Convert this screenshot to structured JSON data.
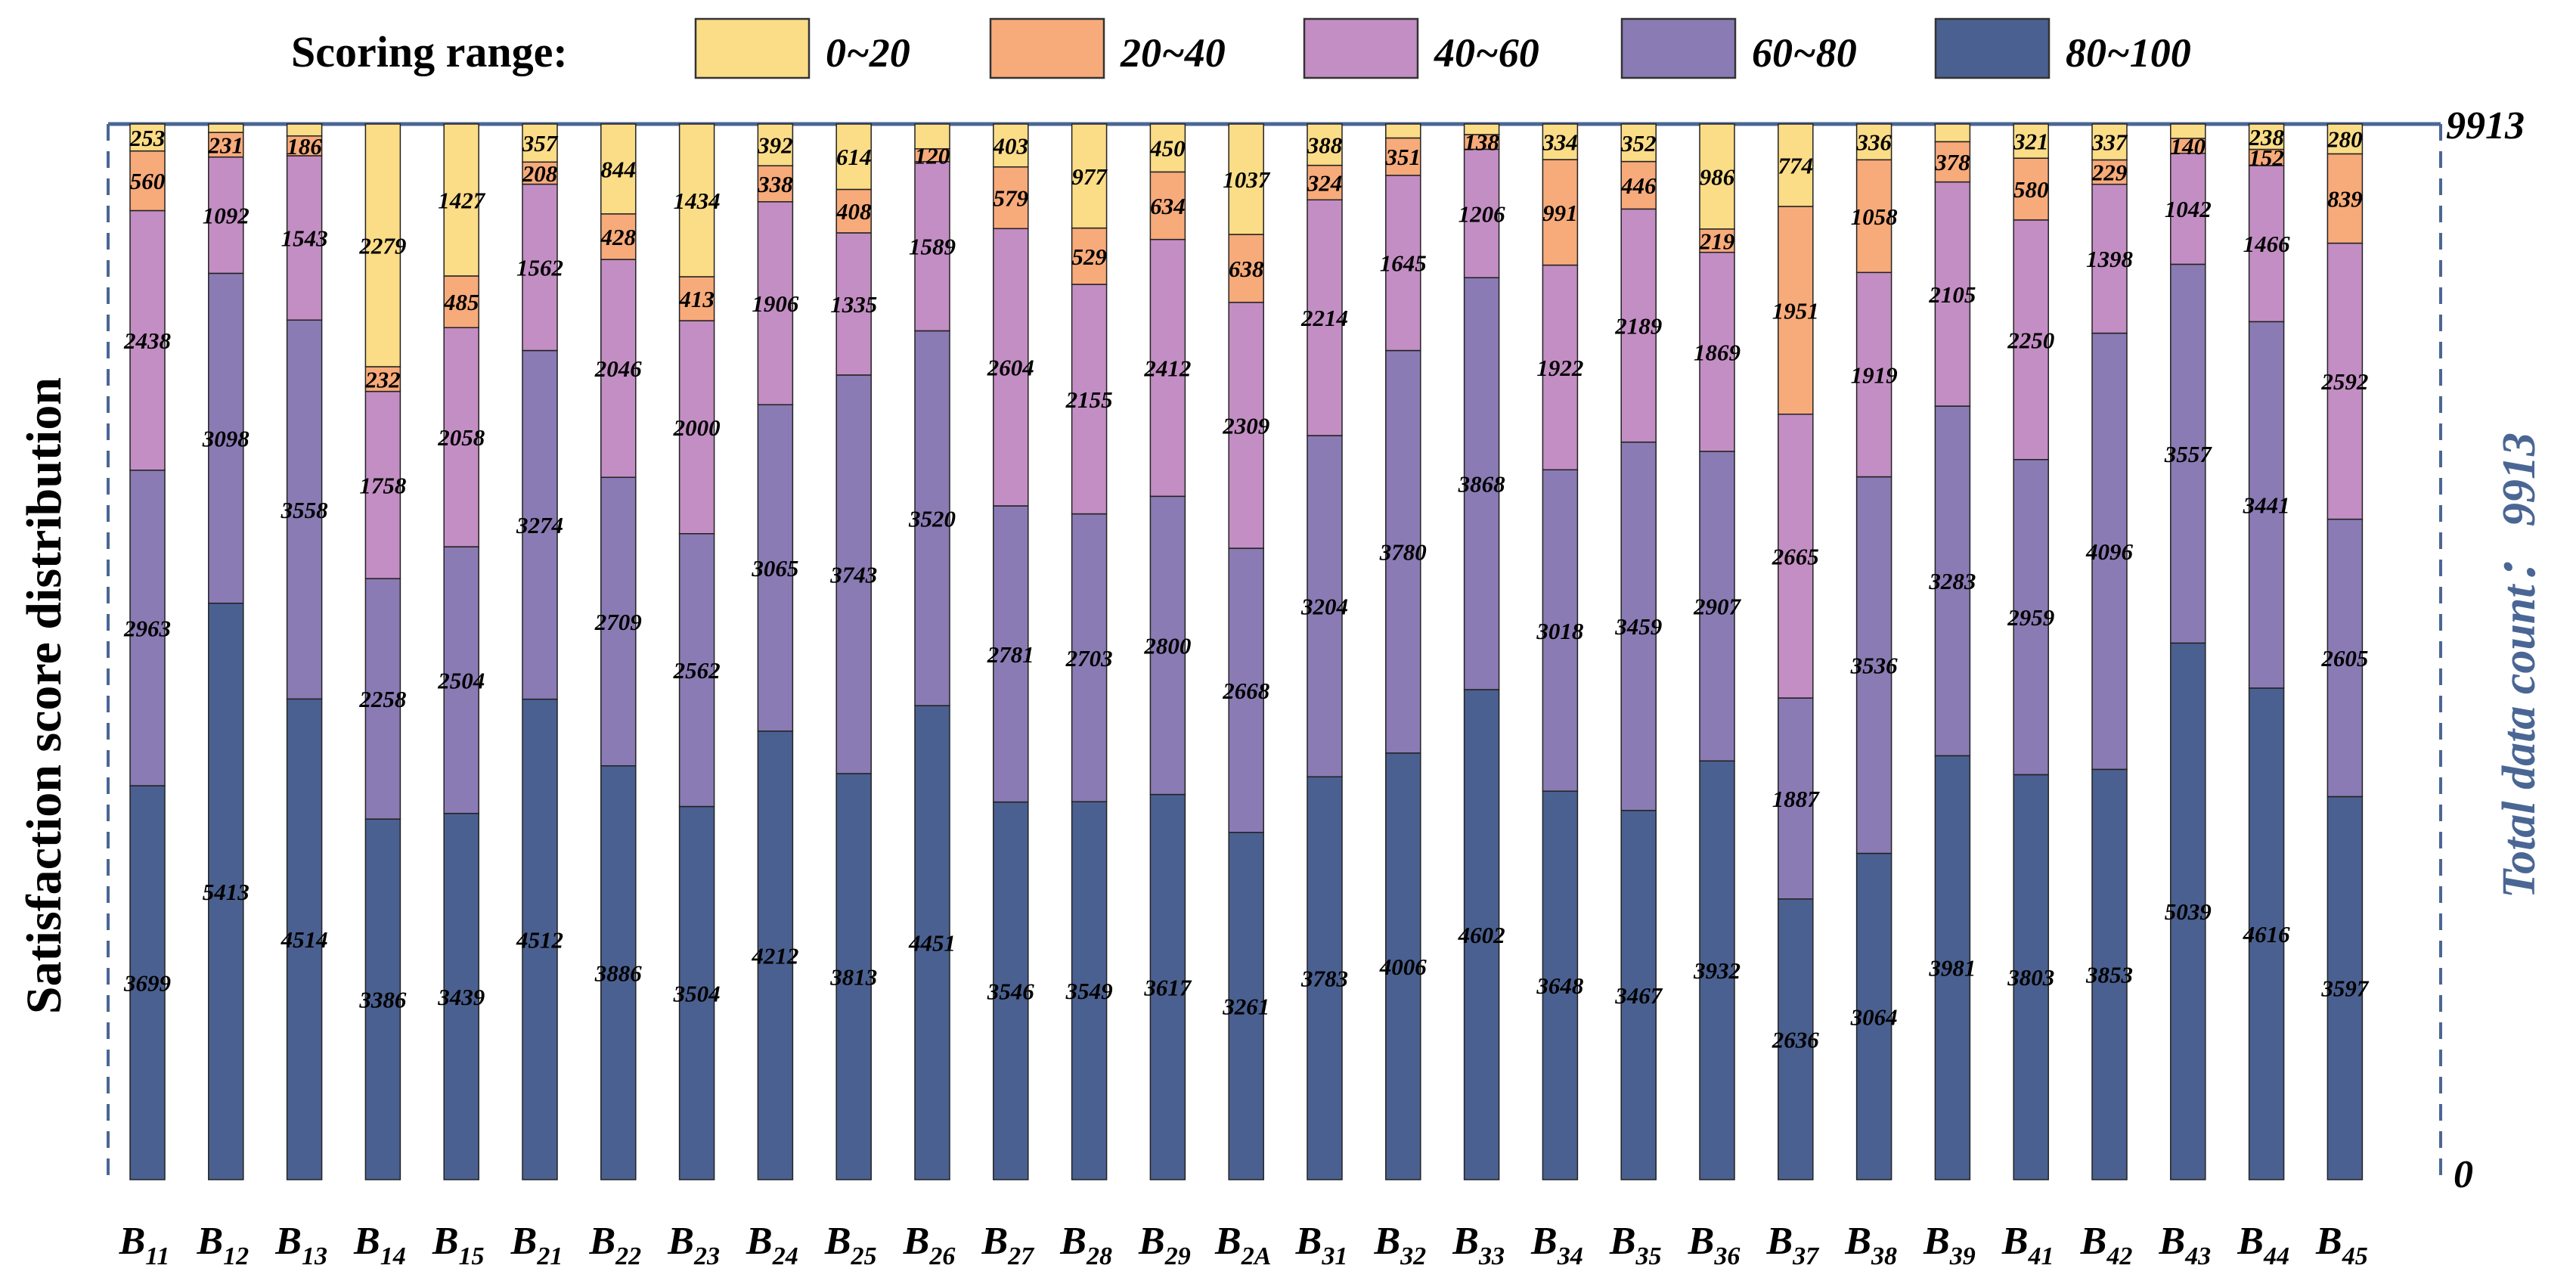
{
  "chart_data": {
    "type": "bar",
    "stacked": true,
    "title": "",
    "ylabel": "Satisfaction score distribution",
    "y2label": "Total data count： 9913",
    "legend_title": "Scoring range:",
    "ylim": [
      0,
      9913
    ],
    "ytick_top": "9913",
    "ytick_bottom": "0",
    "legend_placement": "top",
    "categories": [
      {
        "main": "B",
        "sub": "11"
      },
      {
        "main": "B",
        "sub": "12"
      },
      {
        "main": "B",
        "sub": "13"
      },
      {
        "main": "B",
        "sub": "14"
      },
      {
        "main": "B",
        "sub": "15"
      },
      {
        "main": "B",
        "sub": "21"
      },
      {
        "main": "B",
        "sub": "22"
      },
      {
        "main": "B",
        "sub": "23"
      },
      {
        "main": "B",
        "sub": "24"
      },
      {
        "main": "B",
        "sub": "25"
      },
      {
        "main": "B",
        "sub": "26"
      },
      {
        "main": "B",
        "sub": "27"
      },
      {
        "main": "B",
        "sub": "28"
      },
      {
        "main": "B",
        "sub": "29"
      },
      {
        "main": "B",
        "sub": "2A"
      },
      {
        "main": "B",
        "sub": "31"
      },
      {
        "main": "B",
        "sub": "32"
      },
      {
        "main": "B",
        "sub": "33"
      },
      {
        "main": "B",
        "sub": "34"
      },
      {
        "main": "B",
        "sub": "35"
      },
      {
        "main": "B",
        "sub": "36"
      },
      {
        "main": "B",
        "sub": "37"
      },
      {
        "main": "B",
        "sub": "38"
      },
      {
        "main": "B",
        "sub": "39"
      },
      {
        "main": "B",
        "sub": "41"
      },
      {
        "main": "B",
        "sub": "42"
      },
      {
        "main": "B",
        "sub": "43"
      },
      {
        "main": "B",
        "sub": "44"
      },
      {
        "main": "B",
        "sub": "45"
      }
    ],
    "series": [
      {
        "name": "80~100",
        "color": "#4a6090",
        "values": [
          3699,
          5413,
          4514,
          3386,
          3439,
          4512,
          3886,
          3504,
          4212,
          3813,
          4451,
          3546,
          3549,
          3617,
          3261,
          3783,
          4006,
          4602,
          3648,
          3467,
          3932,
          2636,
          3064,
          3981,
          3803,
          3853,
          5039,
          4616,
          3597
        ]
      },
      {
        "name": "60~80",
        "color": "#8a7bb4",
        "values": [
          2963,
          3098,
          3558,
          2258,
          2504,
          3274,
          2709,
          2562,
          3065,
          3743,
          3520,
          2781,
          2703,
          2800,
          2668,
          3204,
          3780,
          3868,
          3018,
          3459,
          2907,
          1887,
          3536,
          3283,
          2959,
          4096,
          3557,
          3441,
          2605
        ]
      },
      {
        "name": "40~60",
        "color": "#c38ec3",
        "values": [
          2438,
          1092,
          1543,
          1758,
          2058,
          1562,
          2046,
          2000,
          1906,
          1335,
          1589,
          2604,
          2155,
          2412,
          2309,
          2214,
          1645,
          1206,
          1922,
          2189,
          1869,
          2665,
          1919,
          2105,
          2250,
          1398,
          1042,
          1466,
          2592
        ]
      },
      {
        "name": "20~40",
        "color": "#f7aa7a",
        "values": [
          560,
          231,
          186,
          232,
          485,
          208,
          428,
          413,
          338,
          408,
          120,
          579,
          529,
          634,
          638,
          324,
          351,
          138,
          991,
          446,
          219,
          1951,
          1058,
          378,
          580,
          229,
          140,
          152,
          839
        ]
      },
      {
        "name": "0~20",
        "color": "#fbdc87",
        "values": [
          253,
          79,
          112,
          2279,
          1427,
          357,
          844,
          1434,
          392,
          614,
          233,
          403,
          977,
          450,
          1037,
          388,
          131,
          99,
          334,
          352,
          986,
          774,
          336,
          166,
          321,
          337,
          135,
          238,
          280
        ]
      }
    ],
    "data_labels": [
      [
        "3699",
        "2963",
        "2438",
        "560",
        "253"
      ],
      [
        "5413",
        "3098",
        "1092",
        "231",
        ""
      ],
      [
        "4514",
        "3558",
        "1543",
        "186",
        ""
      ],
      [
        "3386",
        "2258",
        "1758",
        "232",
        "2279"
      ],
      [
        "3439",
        "2504",
        "2058",
        "485",
        "1427"
      ],
      [
        "4512",
        "3274",
        "1562",
        "208",
        "357"
      ],
      [
        "3886",
        "2709",
        "2046",
        "428",
        "844"
      ],
      [
        "3504",
        "2562",
        "2000",
        "413",
        "1434"
      ],
      [
        "4212",
        "3065",
        "1906",
        "338",
        "392"
      ],
      [
        "3813",
        "3743",
        "1335",
        "408",
        "614"
      ],
      [
        "4451",
        "3520",
        "1589",
        "120",
        ""
      ],
      [
        "3546",
        "2781",
        "2604",
        "579",
        "403"
      ],
      [
        "3549",
        "2703",
        "2155",
        "529",
        "977"
      ],
      [
        "3617",
        "2800",
        "2412",
        "634",
        "450"
      ],
      [
        "3261",
        "2668",
        "2309",
        "638",
        "1037"
      ],
      [
        "3783",
        "3204",
        "2214",
        "324",
        "388"
      ],
      [
        "4006",
        "3780",
        "1645",
        "351",
        ""
      ],
      [
        "4602",
        "3868",
        "1206",
        "138",
        ""
      ],
      [
        "3648",
        "3018",
        "1922",
        "991",
        "334"
      ],
      [
        "3467",
        "3459",
        "2189",
        "446",
        "352"
      ],
      [
        "3932",
        "2907",
        "1869",
        "219",
        "986"
      ],
      [
        "2636",
        "1887",
        "2665",
        "1951",
        "774"
      ],
      [
        "3064",
        "3536",
        "1919",
        "1058",
        "336"
      ],
      [
        "3981",
        "3283",
        "2105",
        "378",
        ""
      ],
      [
        "3803",
        "2959",
        "2250",
        "580",
        "321"
      ],
      [
        "3853",
        "4096",
        "1398",
        "229",
        "337"
      ],
      [
        "5039",
        "3557",
        "1042",
        "140",
        ""
      ],
      [
        "4616",
        "3441",
        "1466",
        "152",
        "238"
      ],
      [
        "3597",
        "2605",
        "2592",
        "839",
        "280"
      ]
    ]
  }
}
